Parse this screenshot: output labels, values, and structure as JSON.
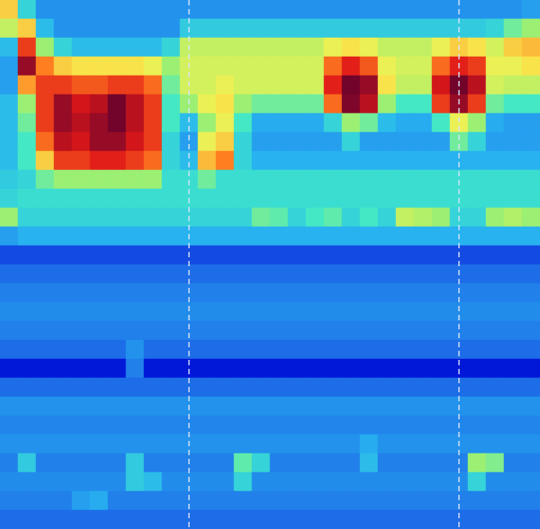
{
  "chart_data": {
    "type": "heatmap",
    "tick_labels": false,
    "zlim": [
      0,
      100
    ],
    "vlines": [
      10,
      25
    ],
    "cells": [
      [
        70,
        40,
        28,
        28,
        28,
        28,
        28,
        28,
        28,
        28,
        28,
        28,
        28,
        28,
        28,
        28,
        28,
        28,
        28,
        28,
        28,
        28,
        28,
        28,
        28,
        28,
        28,
        28,
        28,
        30
      ],
      [
        60,
        70,
        35,
        28,
        28,
        28,
        28,
        28,
        28,
        28,
        38,
        38,
        38,
        38,
        38,
        38,
        38,
        38,
        38,
        38,
        38,
        38,
        38,
        38,
        38,
        38,
        38,
        40,
        50,
        55
      ],
      [
        35,
        85,
        55,
        40,
        35,
        35,
        35,
        35,
        35,
        40,
        60,
        60,
        60,
        60,
        60,
        60,
        60,
        60,
        65,
        68,
        65,
        60,
        60,
        60,
        65,
        70,
        68,
        62,
        70,
        72
      ],
      [
        30,
        95,
        78,
        70,
        68,
        68,
        68,
        68,
        65,
        55,
        62,
        62,
        62,
        62,
        62,
        62,
        62,
        62,
        80,
        88,
        82,
        65,
        62,
        62,
        80,
        88,
        85,
        65,
        65,
        68
      ],
      [
        30,
        75,
        85,
        85,
        82,
        82,
        85,
        85,
        80,
        50,
        62,
        62,
        65,
        62,
        62,
        62,
        62,
        62,
        88,
        98,
        95,
        68,
        60,
        60,
        90,
        98,
        92,
        62,
        60,
        60
      ],
      [
        35,
        55,
        85,
        95,
        90,
        92,
        98,
        92,
        85,
        45,
        55,
        65,
        68,
        55,
        50,
        50,
        50,
        50,
        80,
        97,
        92,
        55,
        45,
        45,
        85,
        95,
        85,
        50,
        45,
        45
      ],
      [
        35,
        50,
        85,
        95,
        92,
        95,
        98,
        92,
        85,
        45,
        35,
        55,
        65,
        45,
        32,
        32,
        32,
        32,
        40,
        55,
        50,
        35,
        32,
        32,
        45,
        65,
        55,
        32,
        30,
        30
      ],
      [
        35,
        45,
        80,
        92,
        90,
        95,
        95,
        90,
        85,
        40,
        30,
        65,
        70,
        40,
        30,
        30,
        30,
        30,
        30,
        40,
        30,
        30,
        30,
        30,
        30,
        50,
        40,
        30,
        30,
        30
      ],
      [
        35,
        45,
        70,
        85,
        85,
        88,
        88,
        85,
        80,
        40,
        35,
        72,
        78,
        40,
        33,
        33,
        33,
        33,
        33,
        33,
        33,
        33,
        33,
        33,
        33,
        33,
        33,
        33,
        33,
        33
      ],
      [
        38,
        40,
        50,
        55,
        55,
        55,
        55,
        55,
        55,
        42,
        42,
        50,
        42,
        42,
        42,
        42,
        42,
        42,
        42,
        42,
        42,
        42,
        42,
        42,
        42,
        42,
        42,
        42,
        42,
        42
      ],
      [
        40,
        42,
        42,
        42,
        42,
        42,
        42,
        42,
        42,
        42,
        42,
        42,
        42,
        42,
        42,
        42,
        42,
        42,
        42,
        42,
        42,
        42,
        42,
        42,
        42,
        42,
        42,
        42,
        42,
        42
      ],
      [
        55,
        40,
        40,
        40,
        40,
        40,
        40,
        40,
        40,
        40,
        40,
        40,
        40,
        40,
        50,
        48,
        40,
        45,
        48,
        40,
        45,
        40,
        60,
        58,
        55,
        40,
        40,
        55,
        58,
        55
      ],
      [
        30,
        33,
        33,
        33,
        33,
        33,
        33,
        33,
        33,
        33,
        33,
        33,
        33,
        33,
        33,
        33,
        33,
        33,
        33,
        33,
        33,
        33,
        33,
        33,
        33,
        33,
        33,
        33,
        33,
        33
      ],
      [
        18,
        18,
        18,
        18,
        18,
        18,
        18,
        18,
        18,
        18,
        18,
        18,
        18,
        18,
        18,
        18,
        18,
        18,
        18,
        18,
        18,
        18,
        18,
        18,
        18,
        18,
        18,
        18,
        18,
        18
      ],
      [
        22,
        22,
        22,
        22,
        22,
        22,
        22,
        22,
        22,
        22,
        22,
        22,
        22,
        22,
        22,
        22,
        22,
        22,
        22,
        22,
        22,
        22,
        22,
        22,
        22,
        22,
        22,
        22,
        22,
        22
      ],
      [
        25,
        25,
        25,
        25,
        25,
        25,
        25,
        25,
        25,
        25,
        25,
        25,
        25,
        25,
        25,
        25,
        25,
        25,
        25,
        25,
        25,
        25,
        25,
        25,
        25,
        25,
        25,
        25,
        25,
        25
      ],
      [
        27,
        27,
        27,
        27,
        27,
        27,
        27,
        27,
        27,
        27,
        27,
        27,
        27,
        27,
        27,
        27,
        27,
        27,
        27,
        27,
        27,
        27,
        27,
        27,
        27,
        27,
        27,
        27,
        27,
        27
      ],
      [
        25,
        25,
        25,
        25,
        25,
        25,
        25,
        25,
        25,
        25,
        25,
        25,
        25,
        25,
        25,
        25,
        25,
        25,
        25,
        25,
        25,
        25,
        25,
        25,
        25,
        25,
        25,
        25,
        25,
        25
      ],
      [
        22,
        22,
        22,
        22,
        22,
        22,
        22,
        28,
        22,
        22,
        22,
        22,
        22,
        22,
        22,
        22,
        22,
        22,
        22,
        22,
        22,
        22,
        22,
        22,
        22,
        22,
        22,
        22,
        22,
        22
      ],
      [
        12,
        12,
        12,
        12,
        12,
        12,
        12,
        25,
        12,
        12,
        12,
        12,
        12,
        12,
        12,
        12,
        12,
        12,
        12,
        12,
        12,
        12,
        12,
        12,
        12,
        12,
        12,
        12,
        12,
        12
      ],
      [
        22,
        22,
        22,
        22,
        22,
        22,
        22,
        22,
        22,
        22,
        22,
        22,
        22,
        22,
        22,
        22,
        22,
        22,
        22,
        22,
        22,
        22,
        22,
        22,
        22,
        22,
        22,
        22,
        22,
        22
      ],
      [
        28,
        28,
        28,
        28,
        28,
        28,
        28,
        28,
        28,
        28,
        28,
        28,
        28,
        28,
        28,
        28,
        28,
        28,
        28,
        28,
        28,
        28,
        28,
        28,
        28,
        28,
        28,
        28,
        28,
        28
      ],
      [
        26,
        26,
        26,
        26,
        26,
        26,
        26,
        26,
        26,
        26,
        26,
        26,
        26,
        26,
        26,
        26,
        26,
        26,
        26,
        26,
        26,
        26,
        26,
        26,
        26,
        26,
        26,
        26,
        26,
        26
      ],
      [
        28,
        28,
        28,
        28,
        28,
        28,
        28,
        28,
        28,
        28,
        28,
        28,
        28,
        28,
        28,
        28,
        28,
        28,
        28,
        28,
        32,
        28,
        28,
        28,
        28,
        28,
        28,
        28,
        28,
        28
      ],
      [
        25,
        38,
        25,
        25,
        25,
        25,
        25,
        38,
        25,
        25,
        25,
        25,
        25,
        48,
        40,
        25,
        25,
        25,
        25,
        25,
        35,
        25,
        25,
        25,
        25,
        25,
        55,
        52,
        25,
        25
      ],
      [
        27,
        27,
        27,
        27,
        27,
        27,
        27,
        38,
        35,
        27,
        27,
        27,
        27,
        40,
        27,
        27,
        27,
        27,
        27,
        27,
        27,
        27,
        27,
        27,
        27,
        27,
        40,
        27,
        27,
        27
      ],
      [
        25,
        25,
        25,
        25,
        30,
        32,
        25,
        25,
        25,
        25,
        25,
        25,
        25,
        25,
        25,
        25,
        25,
        25,
        25,
        25,
        25,
        25,
        25,
        25,
        25,
        25,
        25,
        25,
        25,
        25
      ],
      [
        22,
        22,
        22,
        22,
        22,
        22,
        22,
        22,
        22,
        22,
        22,
        22,
        22,
        22,
        22,
        22,
        22,
        22,
        22,
        22,
        22,
        22,
        22,
        22,
        22,
        22,
        22,
        22,
        22,
        22
      ]
    ]
  }
}
